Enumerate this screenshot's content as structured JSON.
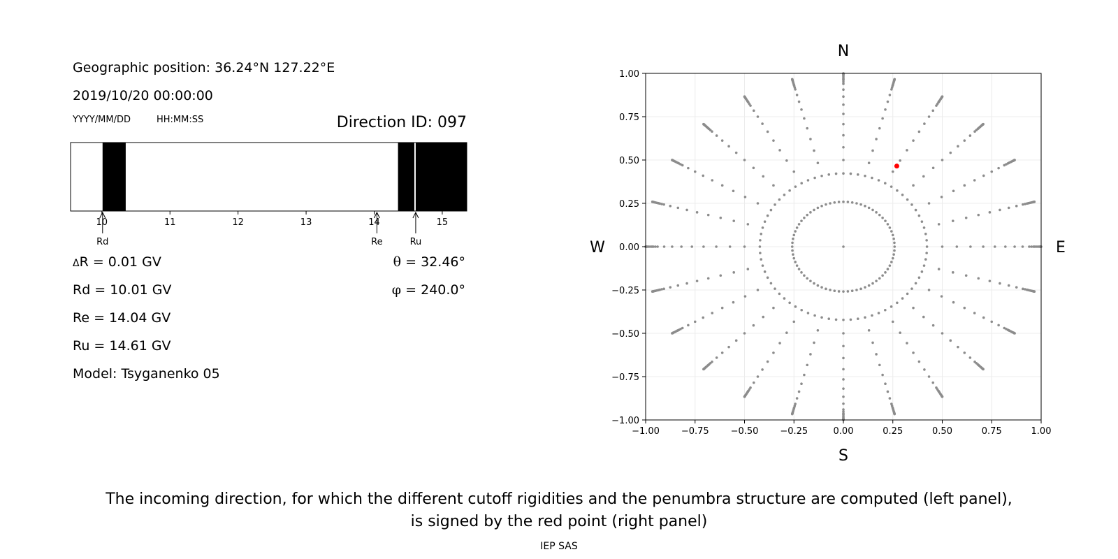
{
  "left_panel": {
    "geo_position": "Geographic position: 36.24°N 127.22°E",
    "datetime": "2019/10/20 00:00:00",
    "date_format_label": "YYYY/MM/DD",
    "time_format_label": "HH:MM:SS",
    "direction_id": "Direction ID: 097",
    "delta_r_symbol": "Δ",
    "delta_r_text": "R = 0.01 GV",
    "theta_symbol": "θ",
    "theta_text": "= 32.46°",
    "phi_symbol": "φ",
    "phi_text": "= 240.0°",
    "rd_text": "Rd = 10.01 GV",
    "re_text": "Re = 14.04 GV",
    "ru_text": "Ru = 14.61 GV",
    "model_text": "Model: Tsyganenko 05"
  },
  "caption": {
    "line1": "The incoming direction, for which the different cutoff rigidities and the penumbra structure are computed (left panel),",
    "line2": "is signed by the red point (right panel)",
    "credit": "IEP SAS"
  },
  "chart_data": [
    {
      "type": "bar",
      "description_role": "penumbra",
      "xlim": [
        9.54,
        15.36
      ],
      "xticks": [
        10,
        11,
        12,
        13,
        14,
        15
      ],
      "xtick_labels": [
        "10",
        "11",
        "12",
        "13",
        "14",
        "15"
      ],
      "forbidden_bands": [
        [
          10.01,
          10.35
        ],
        [
          14.35,
          14.59
        ],
        [
          14.61,
          15.36
        ]
      ],
      "markers": [
        {
          "label": "Rd",
          "value": 10.01
        },
        {
          "label": "Re",
          "value": 14.04
        },
        {
          "label": "Ru",
          "value": 14.61
        }
      ],
      "colors": {
        "forbidden": "#000000",
        "allowed": "#ffffff"
      }
    },
    {
      "type": "scatter",
      "description_role": "direction_map",
      "xlim": [
        -1.0,
        1.0
      ],
      "ylim": [
        -1.0,
        1.0
      ],
      "xticks": [
        -1.0,
        -0.75,
        -0.5,
        -0.25,
        0.0,
        0.25,
        0.5,
        0.75,
        1.0
      ],
      "yticks": [
        -1.0,
        -0.75,
        -0.5,
        -0.25,
        0.0,
        0.25,
        0.5,
        0.75,
        1.0
      ],
      "xtick_labels": [
        "−1.00",
        "−0.75",
        "−0.50",
        "−0.25",
        "0.00",
        "0.25",
        "0.50",
        "0.75",
        "1.00"
      ],
      "ytick_labels": [
        "−1.00",
        "−0.75",
        "−0.50",
        "−0.25",
        "0.00",
        "0.25",
        "0.50",
        "0.75",
        "1.00"
      ],
      "grid": true,
      "compass": {
        "north": "N",
        "south": "S",
        "east": "E",
        "west": "W"
      },
      "zenith_point": [
        0.0,
        0.0
      ],
      "zenith_angles_deg": [
        15,
        25,
        30,
        35,
        40,
        45,
        50,
        55,
        60,
        65,
        70,
        75,
        80,
        85,
        90
      ],
      "fine_zenith_angles_deg": [
        72,
        74,
        76,
        78,
        82,
        84,
        86,
        88
      ],
      "azimuth_step_deg": 15,
      "highlighted_point": [
        0.27,
        0.465
      ],
      "colors": {
        "grid_points": "#8c8c8c",
        "highlight": "#ff0000"
      }
    }
  ]
}
